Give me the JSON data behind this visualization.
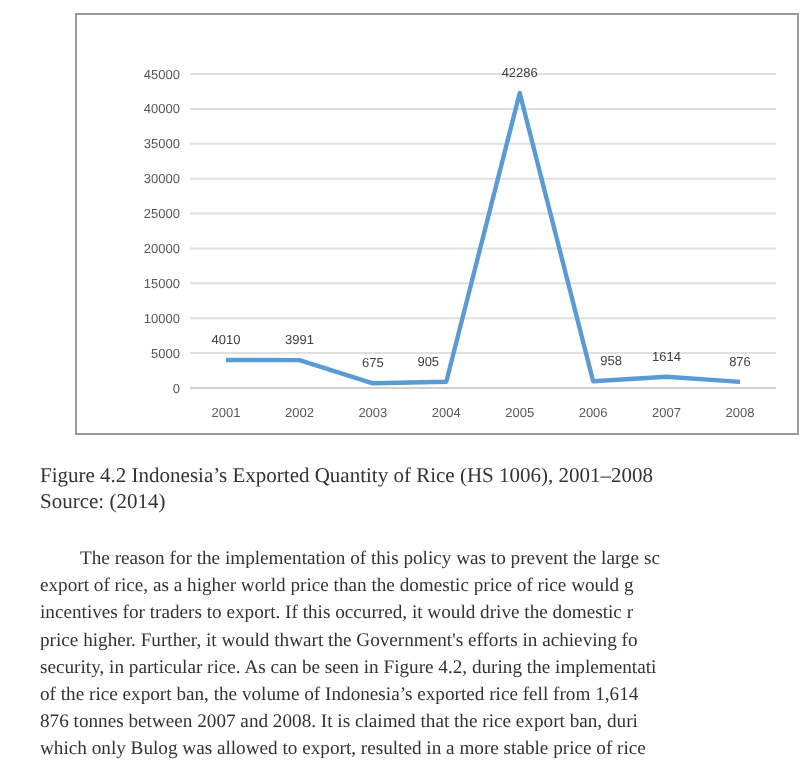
{
  "chart_data": {
    "type": "line",
    "categories": [
      "2001",
      "2002",
      "2003",
      "2004",
      "2005",
      "2006",
      "2007",
      "2008"
    ],
    "values": [
      4010,
      3991,
      675,
      905,
      42286,
      958,
      1614,
      876
    ],
    "color": "#5b9bd5",
    "ylim": [
      0,
      45000
    ],
    "yticks": [
      0,
      5000,
      10000,
      15000,
      20000,
      25000,
      30000,
      35000,
      40000,
      45000
    ],
    "grid": "y",
    "data_labels": true,
    "marker": "none",
    "line_style": "solid",
    "annotations": [
      "Figure 4.2 Indonesia’s Exported Quantity of Rice (HS 1006), 2001–2008",
      "Source: (2014)",
      "The reason for the implementation of this policy was to prevent the large sc",
      "export of rice, as a higher world price than the domestic price of rice would g",
      "incentives for traders to export. If this occurred, it would drive the domestic r",
      "price higher. Further, it would thwart the Government's efforts in achieving fo",
      "security, in particular rice. As can be seen in Figure 4.2, during the implementati",
      "of the rice export ban, the volume of Indonesia’s exported rice fell from 1,614",
      "876 tonnes between 2007 and 2008. It is claimed that the rice export ban, duri",
      "which only Bulog was allowed to export, resulted in a more stable price of rice"
    ]
  }
}
